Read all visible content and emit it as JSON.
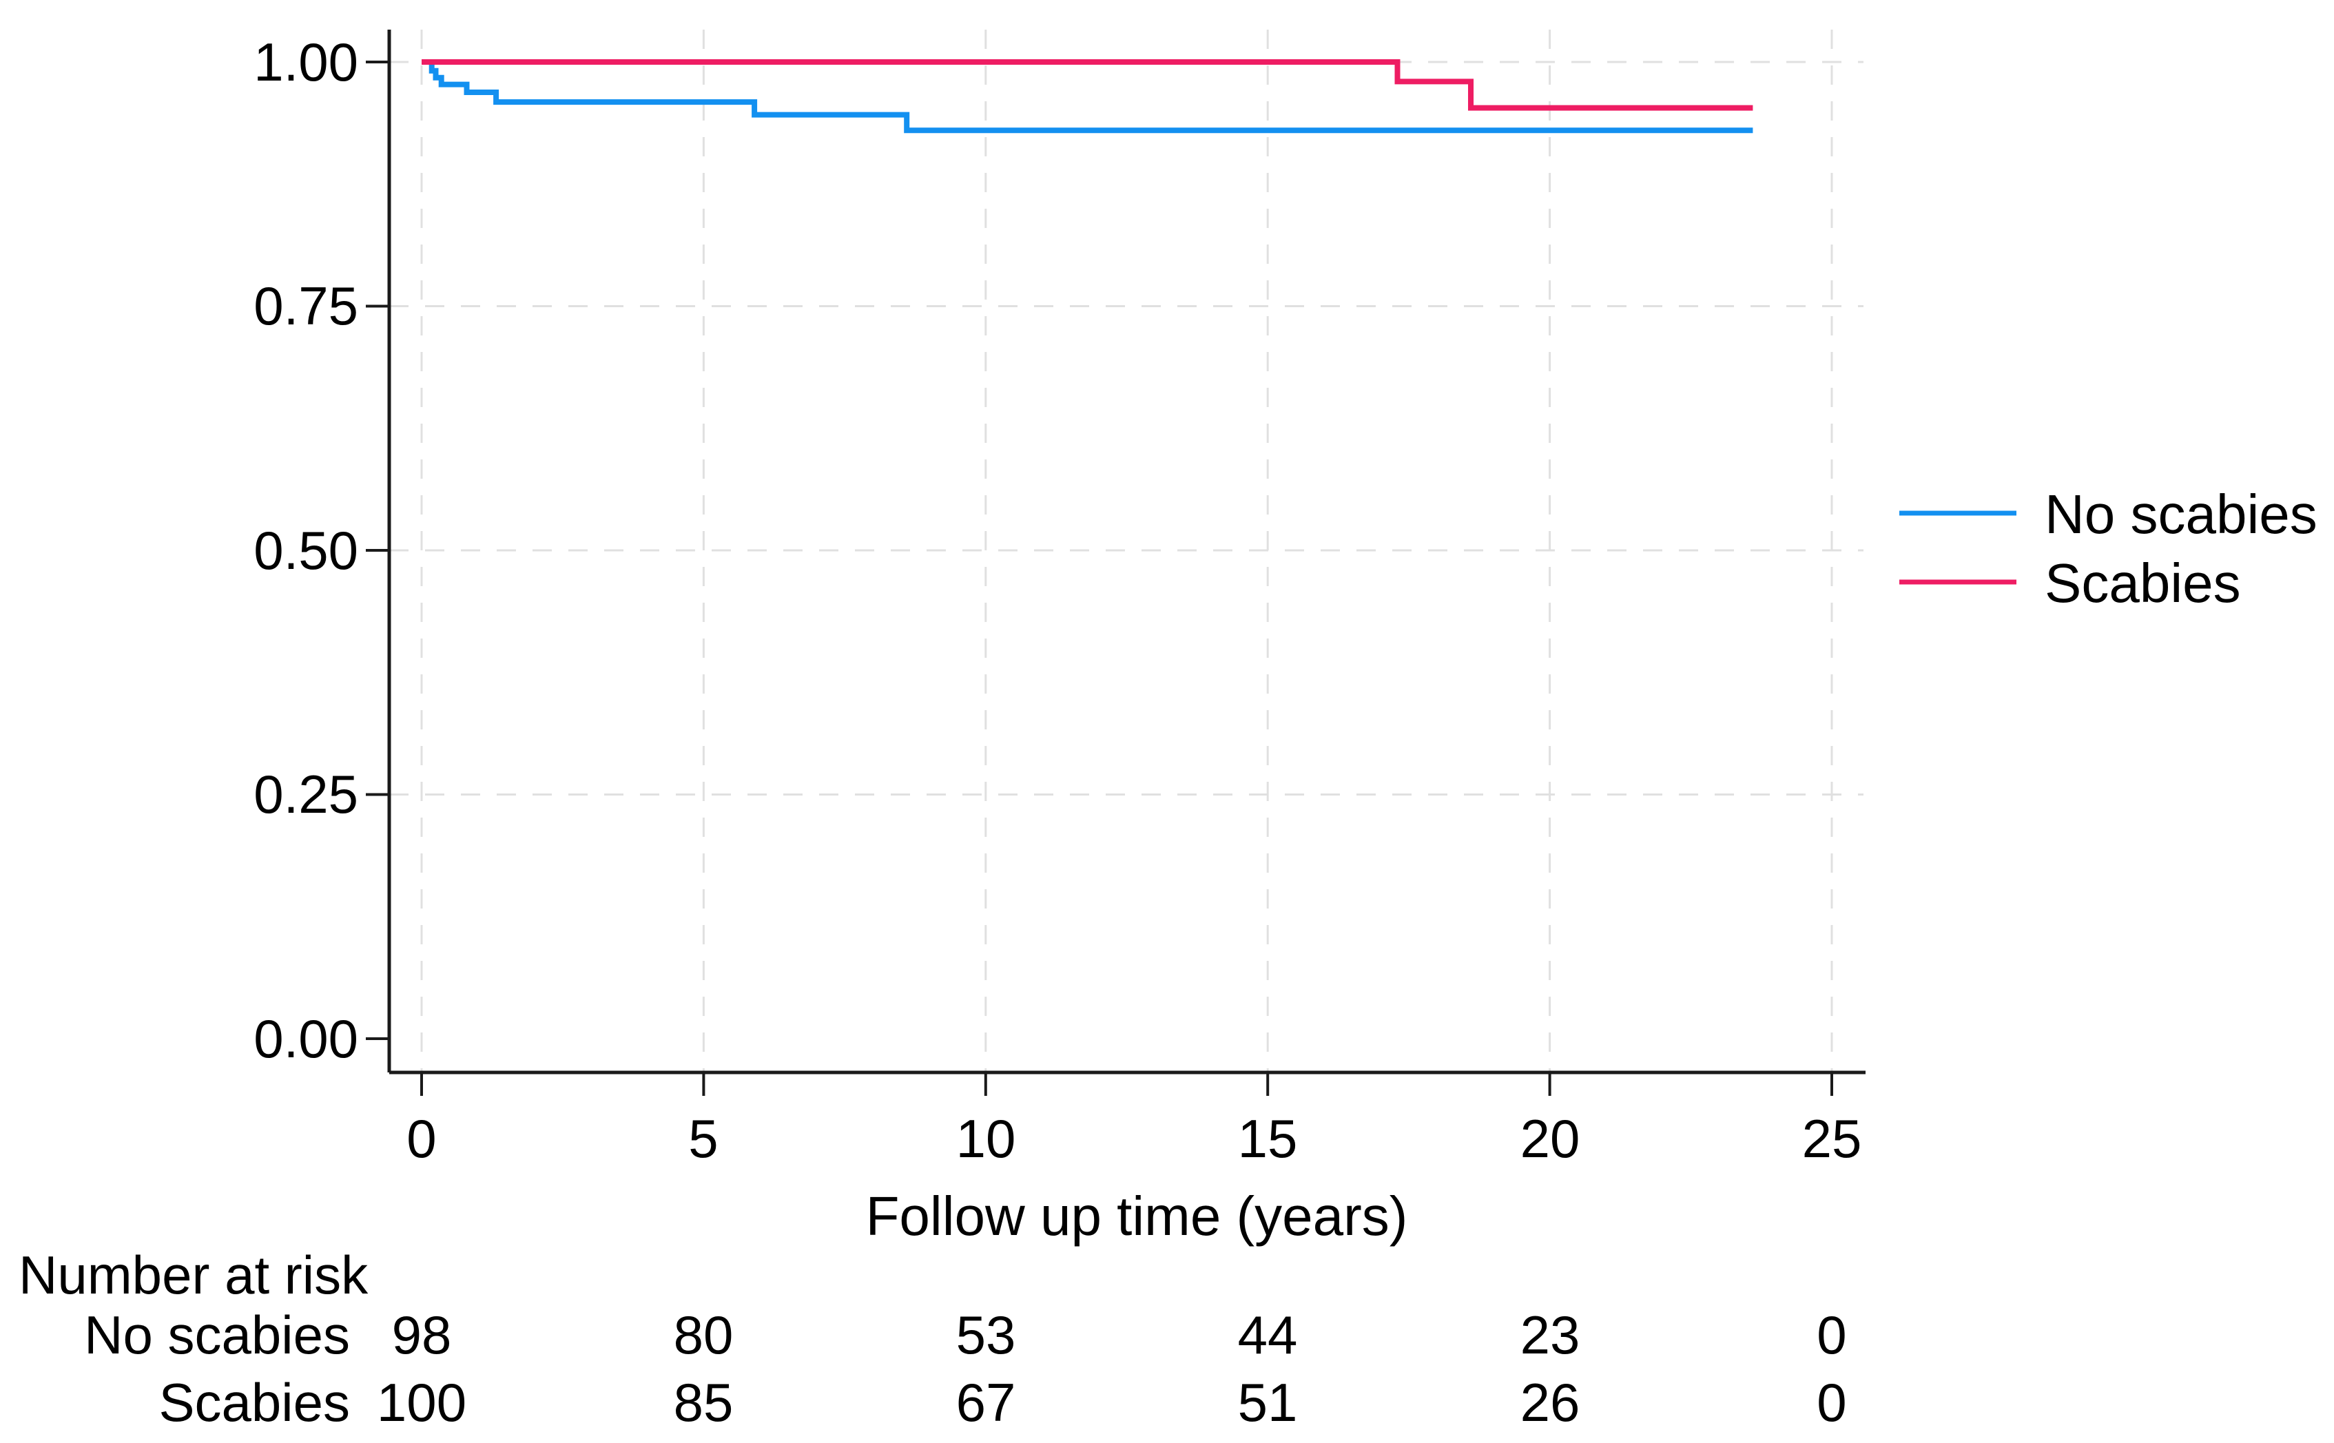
{
  "chart_data": {
    "type": "line",
    "subtype": "kaplan-meier-step-survival",
    "title": "",
    "xlabel": "Follow up time (years)",
    "ylabel": "",
    "xlim": [
      0,
      25
    ],
    "ylim": [
      0.0,
      1.0
    ],
    "x_tick_values": [
      0,
      5,
      10,
      15,
      20,
      25
    ],
    "x_ticks": [
      "0",
      "5",
      "10",
      "15",
      "20",
      "25"
    ],
    "y_tick_values": [
      1.0,
      0.75,
      0.5,
      0.25,
      0.0
    ],
    "y_ticks": [
      "1.00",
      "0.75",
      "0.50",
      "0.25",
      "0.00"
    ],
    "grid": "dashed light-gray, horizontal at 0.25/0.50/0.75/1.00 and vertical at each x tick",
    "legend_position": "right of plot, middle",
    "series": [
      {
        "name": "No scabies",
        "color": "#1390F0",
        "points": [
          [
            0,
            1.0
          ],
          [
            0.18,
            0.991
          ],
          [
            0.25,
            0.984
          ],
          [
            0.35,
            0.977
          ],
          [
            0.8,
            0.969
          ],
          [
            1.32,
            0.959
          ],
          [
            5.9,
            0.946
          ],
          [
            8.6,
            0.93
          ],
          [
            23.6,
            0.93
          ]
        ]
      },
      {
        "name": "Scabies",
        "color": "#EE1D63",
        "points": [
          [
            0,
            1.0
          ],
          [
            17.3,
            0.98
          ],
          [
            18.6,
            0.953
          ],
          [
            23.6,
            0.953
          ]
        ]
      }
    ]
  },
  "legend": {
    "items": [
      {
        "label": "No scabies",
        "color": "#1390F0"
      },
      {
        "label": "Scabies",
        "color": "#EE1D63"
      }
    ]
  },
  "risk_table": {
    "title": "Number at risk",
    "time_points": [
      0,
      5,
      10,
      15,
      20,
      25
    ],
    "rows": [
      {
        "label": "No scabies",
        "values": [
          "98",
          "80",
          "53",
          "44",
          "23",
          "0"
        ]
      },
      {
        "label": "Scabies",
        "values": [
          "100",
          "85",
          "67",
          "51",
          "26",
          "0"
        ]
      }
    ]
  },
  "style": {
    "axis_color": "#1a1a1a",
    "grid_color": "#e0e0e0",
    "text_color": "#000000"
  }
}
